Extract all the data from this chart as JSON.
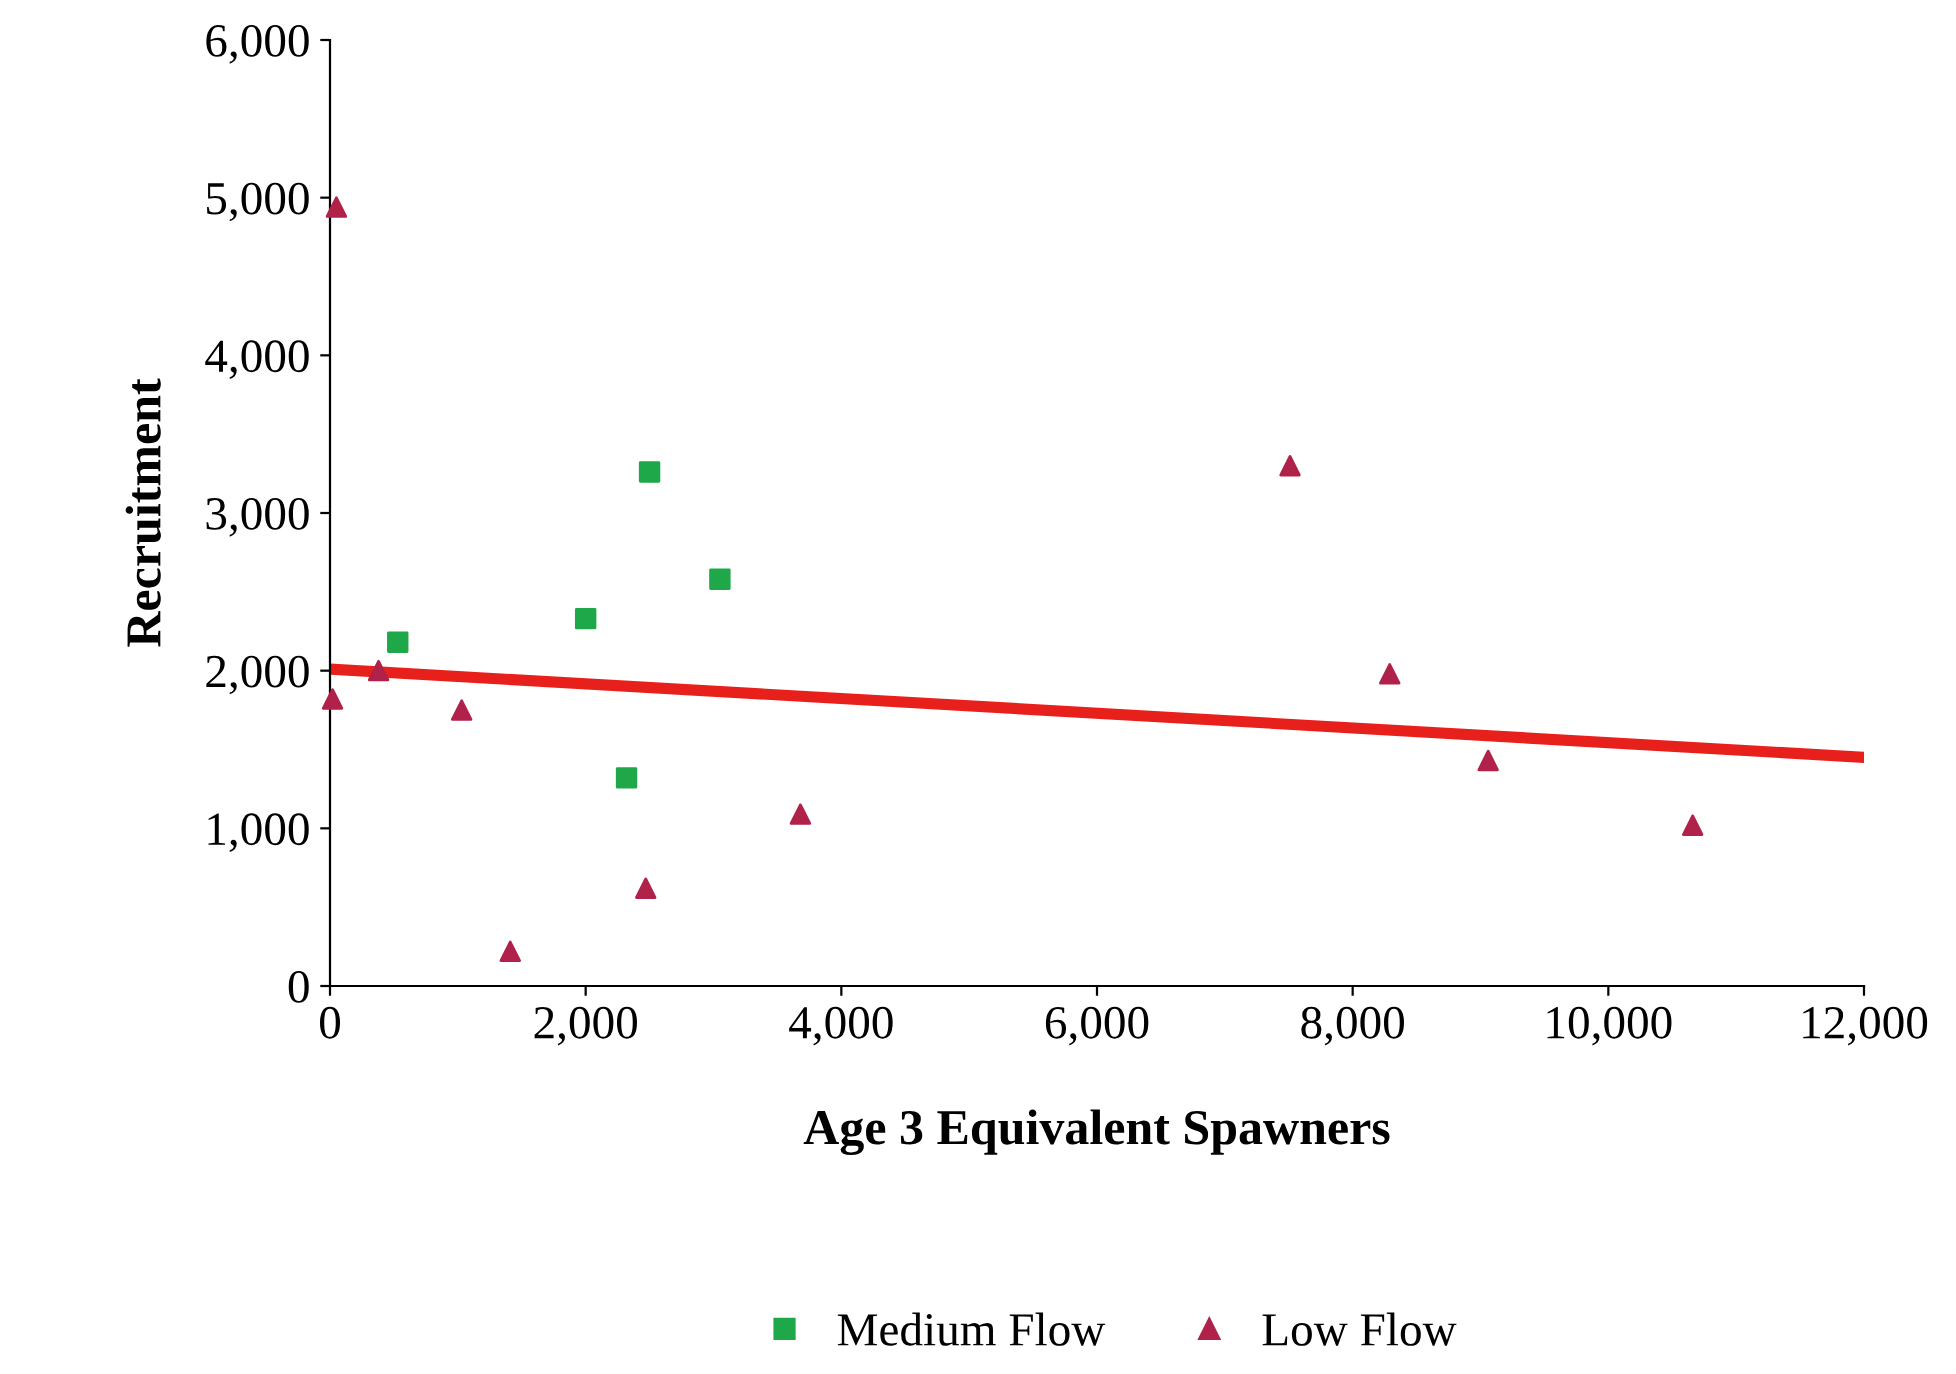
{
  "chart_data": {
    "type": "scatter",
    "xlabel": "Age 3 Equivalent Spawners",
    "ylabel": "Recruitment",
    "series": [
      {
        "name": "Medium Flow",
        "color": "#1fa84a",
        "marker": "square",
        "x": [
          530,
          2000,
          2500,
          3050,
          2320
        ],
        "values": [
          2180,
          2330,
          3260,
          2580,
          1320
        ]
      },
      {
        "name": "Low Flow",
        "color": "#b0224a",
        "marker": "triangle",
        "x": [
          50,
          20,
          380,
          1030,
          1410,
          2470,
          3680,
          7510,
          8290,
          9060,
          10660
        ],
        "values": [
          4940,
          1820,
          2000,
          1750,
          220,
          620,
          1090,
          3300,
          1980,
          1430,
          1020
        ]
      },
      {
        "type": "line",
        "color": "#e8201c",
        "x": [
          0,
          12000
        ],
        "values": [
          2010,
          1450
        ]
      }
    ],
    "xlim": [
      0,
      12000
    ],
    "ylim": [
      0,
      6000
    ],
    "xticks": [
      0,
      {
        "value": 2000,
        "label": "2,000"
      },
      {
        "value": 4000,
        "label": "4,000"
      },
      {
        "value": 6000,
        "label": "6,000"
      },
      {
        "value": 8000,
        "label": "8,000"
      },
      {
        "value": 10000,
        "label": "10,000"
      },
      {
        "value": 12000,
        "label": "12,000"
      }
    ],
    "yticks": [
      0,
      {
        "value": 1000,
        "label": "1,000"
      },
      {
        "value": 2000,
        "label": "2,000"
      },
      {
        "value": 3000,
        "label": "3,000"
      },
      {
        "value": 4000,
        "label": "4,000"
      },
      {
        "value": 5000,
        "label": "5,000"
      },
      {
        "value": 6000,
        "label": "6,000"
      }
    ],
    "grid": false,
    "legend": "bottom"
  }
}
